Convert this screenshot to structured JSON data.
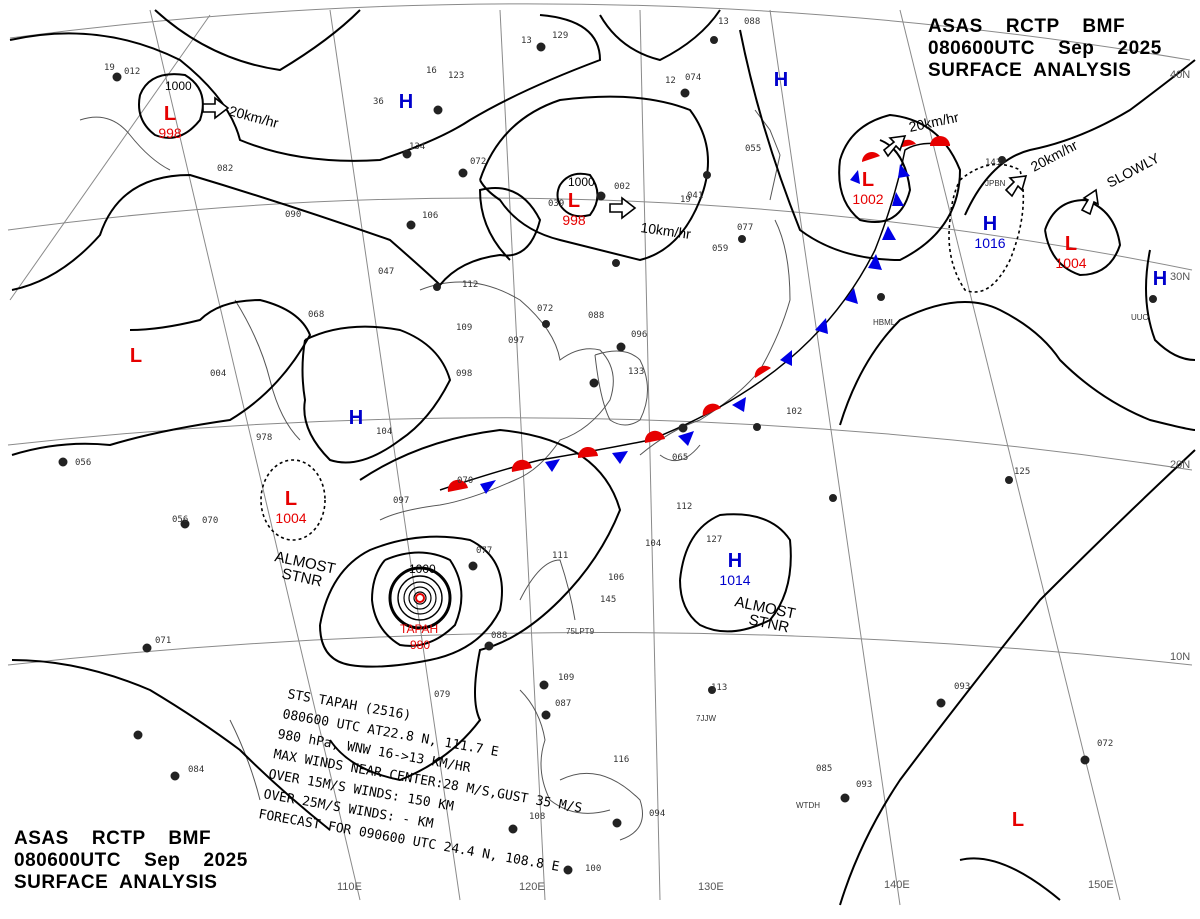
{
  "header": {
    "line1": "ASAS    RCTP    BMF",
    "line2": "080600UTC    Sep    2025",
    "line3": "SURFACE  ANALYSIS"
  },
  "colors": {
    "low": "#e60000",
    "high": "#0000cc",
    "isobar": "#000000",
    "coast": "#555555",
    "grid": "#888888"
  },
  "grid_labels": {
    "lon": [
      "110E",
      "120E",
      "130E",
      "140E",
      "150E"
    ],
    "lat": [
      "40N",
      "30N",
      "20N",
      "10N"
    ]
  },
  "centers": [
    {
      "type": "L",
      "pressure": "998",
      "isobar": "1000"
    },
    {
      "type": "H",
      "pressure": ""
    },
    {
      "type": "H",
      "pressure": ""
    },
    {
      "type": "L",
      "pressure": "998",
      "isobar": "1000"
    },
    {
      "type": "L",
      "pressure": "1002"
    },
    {
      "type": "H",
      "pressure": "1016"
    },
    {
      "type": "L",
      "pressure": "1004"
    },
    {
      "type": "H",
      "pressure": ""
    },
    {
      "type": "L",
      "pressure": ""
    },
    {
      "type": "H",
      "pressure": ""
    },
    {
      "type": "L",
      "pressure": "1004"
    },
    {
      "type": "H",
      "pressure": "1014"
    },
    {
      "type": "L",
      "pressure": ""
    }
  ],
  "motion_labels": [
    "20km/hr",
    "10km/hr",
    "20km/hr",
    "20km/hr",
    "SLOWLY"
  ],
  "stationary_notes": [
    "ALMOST",
    "STNR",
    "ALMOST",
    "STNR"
  ],
  "typhoon": {
    "name": "TAPAH",
    "pressure": "980",
    "isobar": "1000",
    "bulletin": [
      "STS  TAPAH  (2516)",
      "080600 UTC  AT22.8 N, 111.7 E",
      "980 hPa, WNW  16->13 KM/HR",
      "MAX WINDS NEAR CENTER:28 M/S,GUST 35 M/S",
      "OVER 15M/S WINDS: 150 KM",
      "OVER 25M/S WINDS: - KM",
      "FORECAST FOR 090600 UTC 24.4 N, 108.8 E"
    ]
  },
  "station_samples": [
    "19",
    "012",
    "16",
    "123",
    "13",
    "129",
    "13",
    "088",
    "36",
    "12",
    "074",
    "134",
    "072",
    "002",
    "039",
    "19",
    "041",
    "082",
    "090",
    "106",
    "047",
    "112",
    "059",
    "077",
    "055",
    "068",
    "109",
    "097",
    "072",
    "088",
    "004",
    "098",
    "096",
    "143",
    "978",
    "104",
    "056",
    "070",
    "133",
    "102",
    "097",
    "070",
    "065",
    "125",
    "056",
    "112",
    "077",
    "104",
    "127",
    "111",
    "106",
    "071",
    "145",
    "088",
    "079",
    "109",
    "087",
    "113",
    "093",
    "085",
    "093",
    "072",
    "084",
    "116",
    "108",
    "094",
    "100"
  ],
  "station_tags": [
    "JPBN",
    "HBML",
    "UUO",
    "75LPT9",
    "7JJW",
    "WTDH"
  ]
}
